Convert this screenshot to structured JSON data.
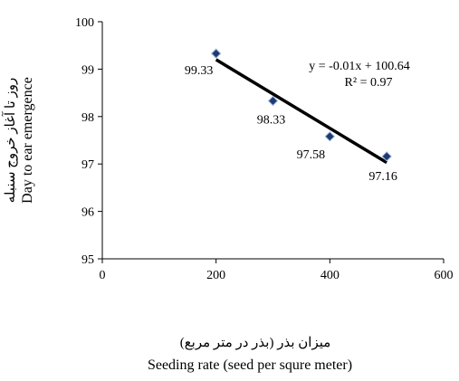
{
  "chart_data": {
    "type": "scatter",
    "title": "",
    "xlabel": "Seeding rate (seed per squre meter)",
    "xlabel_fa": "میزان بذر (بذر در متر مربع)",
    "ylabel": "Day to ear emergence",
    "ylabel_fa": "روز تا آغاز خروج سنبله",
    "xlim": [
      0,
      600
    ],
    "ylim": [
      95,
      100
    ],
    "xticks": [
      0,
      200,
      400,
      600
    ],
    "yticks": [
      95,
      96,
      97,
      98,
      99,
      100
    ],
    "grid": false,
    "legend": "none",
    "series": [
      {
        "points": [
          {
            "x": 200,
            "y": 99.33,
            "label": "99.33"
          },
          {
            "x": 300,
            "y": 98.33,
            "label": "98.33"
          },
          {
            "x": 400,
            "y": 97.58,
            "label": "97.58"
          },
          {
            "x": 500,
            "y": 97.16,
            "label": "97.16"
          }
        ],
        "marker_color": "#1f3a6e",
        "marker": "diamond"
      }
    ],
    "trendline": {
      "type": "linear",
      "x_range": [
        200,
        500
      ],
      "y_at_start": 99.2,
      "y_at_end": 97.03,
      "color": "#000000"
    },
    "annotations": {
      "equation": "y = -0.01x + 100.64",
      "r_squared": "R² = 0.97"
    }
  }
}
